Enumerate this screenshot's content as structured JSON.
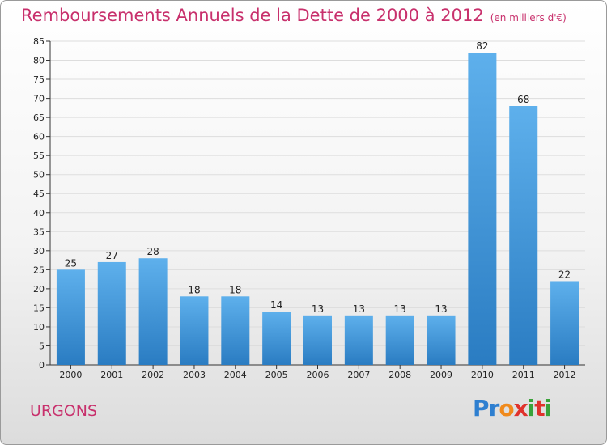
{
  "header": {
    "title": "Remboursements Annuels de la Dette de 2000 à 2012",
    "unit": "(en milliers d'€)"
  },
  "footer": {
    "commune": "URGONS",
    "logo_letters": [
      "P",
      "r",
      "o",
      "x",
      "i",
      "t",
      "i"
    ],
    "logo_colors": [
      "#2e7fd0",
      "#2e7fd0",
      "#f08a1c",
      "#e0322c",
      "#3aa33a",
      "#e0322c",
      "#3aa33a"
    ]
  },
  "colors": {
    "bar_top": "#5eb0ec",
    "bar_bottom": "#2a7cc2",
    "title": "#c8306c",
    "grid": "#dddddd"
  },
  "chart_data": {
    "type": "bar",
    "categories": [
      "2000",
      "2001",
      "2002",
      "2003",
      "2004",
      "2005",
      "2006",
      "2007",
      "2008",
      "2009",
      "2010",
      "2011",
      "2012"
    ],
    "values": [
      25,
      27,
      28,
      18,
      18,
      14,
      13,
      13,
      13,
      13,
      82,
      68,
      22
    ],
    "ylim": [
      0,
      85
    ],
    "yticks": [
      0,
      5,
      10,
      15,
      20,
      25,
      30,
      35,
      40,
      45,
      50,
      55,
      60,
      65,
      70,
      75,
      80,
      85
    ],
    "grid": true
  }
}
